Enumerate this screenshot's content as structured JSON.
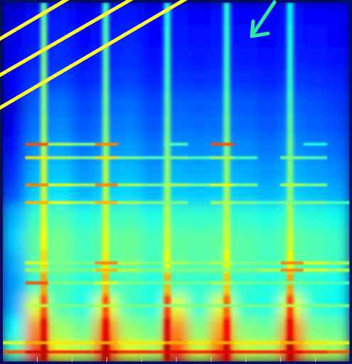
{
  "chart_data": {
    "type": "heatmap",
    "xlim": [
      0,
      10
    ],
    "xticks": [
      1,
      2,
      3,
      4,
      5,
      6,
      7,
      8,
      9
    ],
    "ylim": [
      0,
      16
    ],
    "yticks": [],
    "tick_labels": false,
    "color_range": [
      0,
      1
    ],
    "cells": [
      [
        0.45,
        0.85,
        0.6,
        0.55,
        0.85,
        0.59,
        0.55,
        0.85,
        0.57,
        0.82,
        0.57,
        0.55,
        0.85,
        0.56,
        0.54
      ],
      [
        0.38,
        0.75,
        0.53,
        0.48,
        0.75,
        0.52,
        0.48,
        0.75,
        0.5,
        0.72,
        0.5,
        0.48,
        0.75,
        0.49,
        0.47
      ],
      [
        0.3,
        0.6,
        0.45,
        0.4,
        0.6,
        0.44,
        0.4,
        0.6,
        0.42,
        0.6,
        0.42,
        0.4,
        0.6,
        0.41,
        0.39
      ],
      [
        0.28,
        0.43,
        0.45,
        0.4,
        0.43,
        0.44,
        0.4,
        0.43,
        0.42,
        0.43,
        0.42,
        0.4,
        0.43,
        0.41,
        0.39
      ],
      [
        0.3,
        0.47,
        0.49,
        0.44,
        0.47,
        0.48,
        0.44,
        0.47,
        0.46,
        0.47,
        0.46,
        0.44,
        0.47,
        0.45,
        0.43
      ],
      [
        0.33,
        0.47,
        0.49,
        0.44,
        0.47,
        0.48,
        0.44,
        0.47,
        0.46,
        0.47,
        0.46,
        0.44,
        0.47,
        0.45,
        0.43
      ],
      [
        0.3,
        0.43,
        0.45,
        0.4,
        0.43,
        0.44,
        0.4,
        0.43,
        0.42,
        0.43,
        0.42,
        0.4,
        0.43,
        0.41,
        0.39
      ],
      [
        0.2,
        0.33,
        0.35,
        0.3,
        0.33,
        0.34,
        0.3,
        0.33,
        0.32,
        0.33,
        0.32,
        0.3,
        0.33,
        0.31,
        0.29
      ],
      [
        0.17,
        0.3,
        0.32,
        0.27,
        0.3,
        0.31,
        0.27,
        0.3,
        0.29,
        0.3,
        0.29,
        0.27,
        0.3,
        0.28,
        0.26
      ],
      [
        0.14,
        0.27,
        0.29,
        0.24,
        0.27,
        0.28,
        0.24,
        0.27,
        0.26,
        0.27,
        0.26,
        0.24,
        0.27,
        0.25,
        0.23
      ],
      [
        0.11,
        0.24,
        0.26,
        0.21,
        0.24,
        0.25,
        0.21,
        0.24,
        0.23,
        0.24,
        0.23,
        0.21,
        0.24,
        0.22,
        0.2
      ],
      [
        0.09,
        0.22,
        0.24,
        0.19,
        0.22,
        0.23,
        0.19,
        0.22,
        0.21,
        0.22,
        0.21,
        0.19,
        0.22,
        0.2,
        0.18
      ],
      [
        0.13,
        0.18,
        0.19,
        0.16,
        0.18,
        0.19,
        0.16,
        0.18,
        0.17,
        0.18,
        0.17,
        0.16,
        0.18,
        0.17,
        0.16
      ],
      [
        0.11,
        0.16,
        0.17,
        0.14,
        0.16,
        0.17,
        0.14,
        0.16,
        0.15,
        0.16,
        0.15,
        0.14,
        0.16,
        0.15,
        0.14
      ],
      [
        0.1,
        0.15,
        0.16,
        0.13,
        0.15,
        0.16,
        0.13,
        0.15,
        0.14,
        0.15,
        0.14,
        0.13,
        0.15,
        0.14,
        0.13
      ],
      [
        0.09,
        0.14,
        0.15,
        0.12,
        0.14,
        0.15,
        0.12,
        0.14,
        0.13,
        0.14,
        0.13,
        0.12,
        0.14,
        0.13,
        0.12
      ]
    ],
    "transients": [
      {
        "x": 1.2,
        "values": [
          0.95,
          0.9,
          0.8,
          0.72,
          0.66,
          0.62,
          0.6,
          0.58,
          0.58,
          0.55,
          0.52,
          0.5,
          0.5,
          0.49,
          0.48,
          0.46
        ]
      },
      {
        "x": 2.98,
        "values": [
          0.95,
          0.9,
          0.8,
          0.7,
          0.64,
          0.6,
          0.58,
          0.56,
          0.55,
          0.52,
          0.5,
          0.48,
          0.47,
          0.46,
          0.45,
          0.44
        ]
      },
      {
        "x": 4.75,
        "values": [
          0.95,
          0.9,
          0.82,
          0.7,
          0.62,
          0.58,
          0.56,
          0.54,
          0.52,
          0.5,
          0.48,
          0.46,
          0.44,
          0.43,
          0.42,
          0.4
        ]
      },
      {
        "x": 6.46,
        "values": [
          0.93,
          0.88,
          0.78,
          0.68,
          0.62,
          0.58,
          0.56,
          0.54,
          0.52,
          0.5,
          0.48,
          0.46,
          0.44,
          0.43,
          0.42,
          0.41
        ]
      },
      {
        "x": 8.28,
        "values": [
          0.95,
          0.9,
          0.82,
          0.72,
          0.62,
          0.58,
          0.55,
          0.52,
          0.5,
          0.48,
          0.46,
          0.44,
          0.42,
          0.41,
          0.4,
          0.38
        ]
      }
    ],
    "harmonics": [
      {
        "y": 9.68,
        "values": [
          null,
          0.8,
          0.55,
          0.5,
          0.75,
          null,
          null,
          0.45,
          null,
          0.8,
          null,
          null,
          null,
          0.4,
          null
        ]
      },
      {
        "y": 9.08,
        "values": [
          null,
          0.65,
          0.55,
          0.5,
          0.65,
          0.5,
          0.45,
          0.5,
          0.45,
          0.55,
          0.45,
          null,
          0.5,
          0.45,
          null
        ]
      },
      {
        "y": 7.87,
        "values": [
          null,
          0.75,
          0.6,
          0.55,
          0.75,
          0.55,
          0.5,
          0.55,
          0.5,
          0.6,
          0.5,
          null,
          0.55,
          0.5,
          null
        ]
      },
      {
        "y": 7.08,
        "values": [
          null,
          0.7,
          0.6,
          0.55,
          0.7,
          0.55,
          0.5,
          0.5,
          null,
          0.55,
          0.5,
          0.45,
          0.5,
          0.5,
          0.45
        ]
      },
      {
        "y": 4.4,
        "values": [
          null,
          0.6,
          0.5,
          0.5,
          0.75,
          0.55,
          0.5,
          0.55,
          0.5,
          0.55,
          0.5,
          0.5,
          0.75,
          0.6,
          0.55
        ]
      },
      {
        "y": 4.08,
        "values": [
          null,
          0.55,
          0.5,
          0.5,
          0.7,
          0.55,
          0.5,
          0.5,
          0.5,
          0.5,
          0.5,
          0.55,
          0.75,
          0.6,
          0.55
        ]
      },
      {
        "y": 3.51,
        "values": [
          null,
          0.8,
          0.5,
          0.5,
          0.6,
          0.5,
          0.48,
          0.5,
          0.48,
          0.55,
          0.48,
          0.48,
          0.5,
          0.48,
          0.45
        ]
      },
      {
        "y": 2.5,
        "values": [
          null,
          0.55,
          0.5,
          0.5,
          0.55,
          0.5,
          0.5,
          0.5,
          0.5,
          0.5,
          0.5,
          0.5,
          0.55,
          0.5,
          0.5
        ]
      },
      {
        "y": 0.85,
        "values": [
          0.6,
          0.7,
          0.65,
          0.65,
          0.7,
          0.65,
          0.65,
          0.7,
          0.65,
          0.7,
          0.65,
          0.65,
          0.7,
          0.65,
          0.6
        ]
      },
      {
        "y": 0.44,
        "values": [
          0.8,
          0.92,
          0.85,
          0.85,
          0.92,
          0.85,
          0.85,
          0.9,
          0.85,
          0.9,
          0.85,
          0.85,
          0.9,
          0.85,
          0.8
        ]
      }
    ]
  }
}
